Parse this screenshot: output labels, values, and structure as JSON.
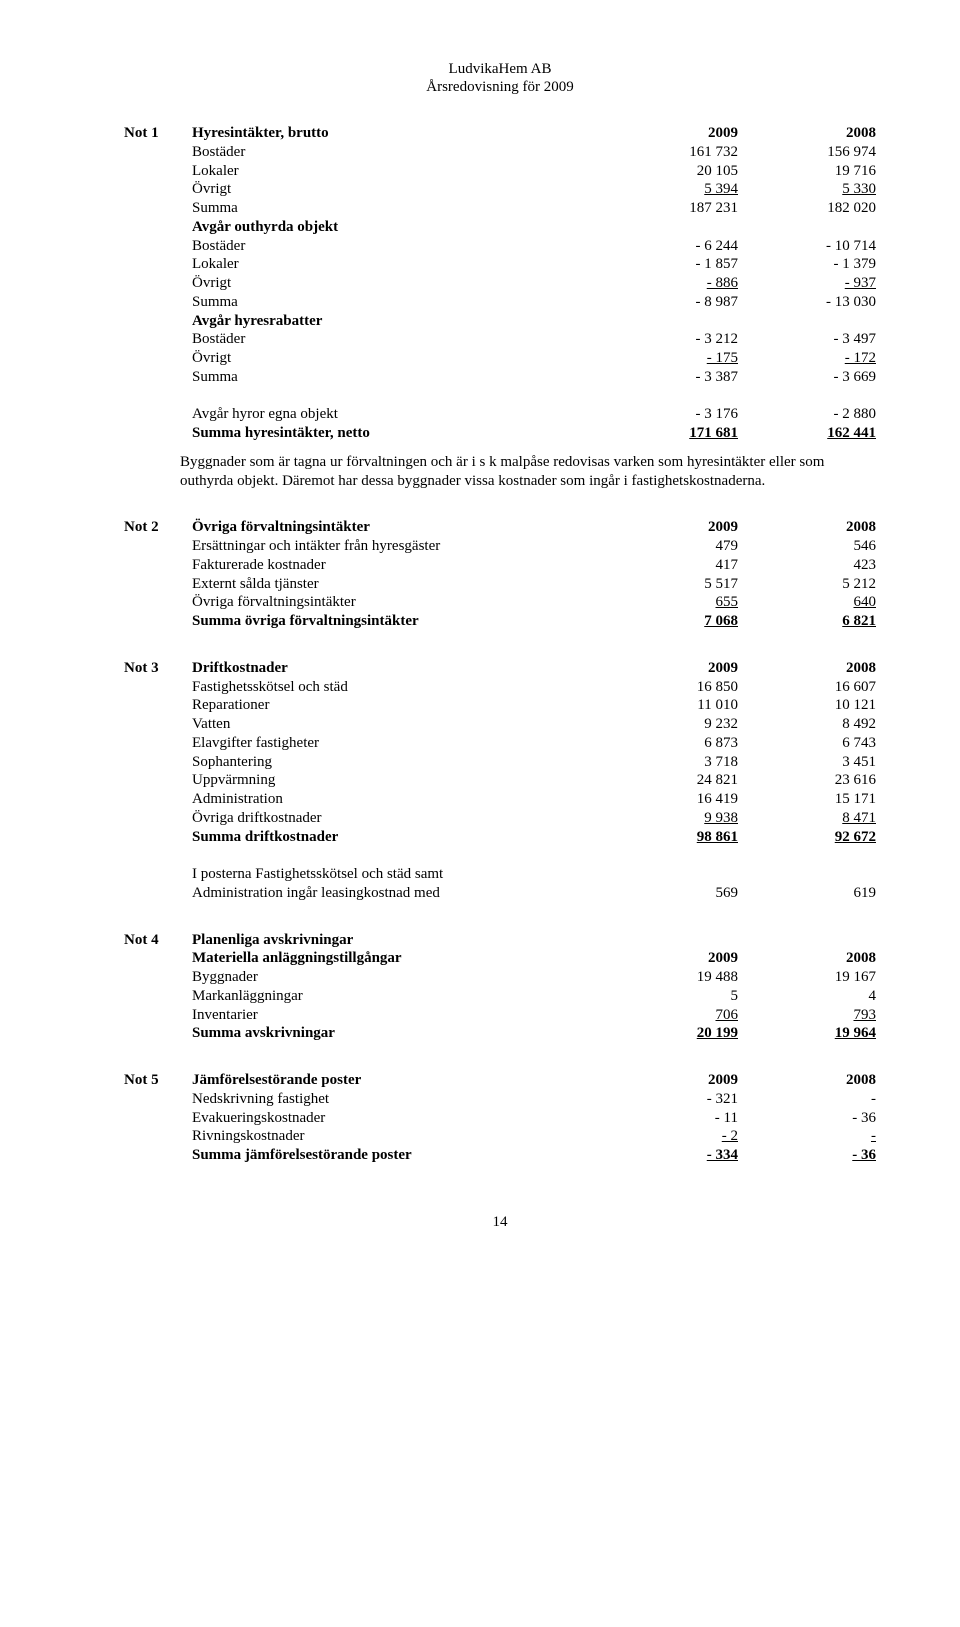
{
  "header": {
    "line1": "LudvikaHem AB",
    "line2": "Årsredovisning för 2009"
  },
  "notes": [
    {
      "id": "Not 1",
      "title": "Hyresintäkter, brutto",
      "col1": "2009",
      "col2": "2008",
      "rows": [
        {
          "label": "Bostäder",
          "c1": "161 732",
          "c2": "156 974"
        },
        {
          "label": "Lokaler",
          "c1": "20 105",
          "c2": "19 716"
        },
        {
          "label": "Övrigt",
          "c1": "5 394",
          "c2": "5 330",
          "u": true
        },
        {
          "label": "Summa",
          "c1": "187 231",
          "c2": "182 020"
        },
        {
          "label": "Avgår outhyrda objekt",
          "b": true
        },
        {
          "label": "Bostäder",
          "c1": "- 6 244",
          "c2": "- 10 714"
        },
        {
          "label": "Lokaler",
          "c1": "- 1 857",
          "c2": "- 1 379"
        },
        {
          "label": "Övrigt",
          "c1": "-    886",
          "c2": "-    937",
          "u": true
        },
        {
          "label": "Summa",
          "c1": "- 8 987",
          "c2": "- 13 030"
        },
        {
          "label": "Avgår hyresrabatter",
          "b": true
        },
        {
          "label": "Bostäder",
          "c1": "- 3 212",
          "c2": "- 3 497"
        },
        {
          "label": "Övrigt",
          "c1": "-    175",
          "c2": "-    172",
          "u": true
        },
        {
          "label": "Summa",
          "c1": "- 3 387",
          "c2": "- 3 669"
        },
        {
          "blank": true
        },
        {
          "label": "Avgår hyror egna objekt",
          "c1": "- 3 176",
          "c2": "- 2 880"
        },
        {
          "label": "Summa hyresintäkter, netto",
          "c1": "171 681",
          "c2": "162 441",
          "b": true,
          "u": true
        }
      ],
      "para": "Byggnader som är tagna ur förvaltningen och är i s k malpåse redovisas varken som hyresintäkter eller som outhyrda objekt. Däremot har dessa byggnader vissa kostnader som ingår i fastighetskostnaderna."
    },
    {
      "id": "Not 2",
      "title": "Övriga förvaltningsintäkter",
      "col1": "2009",
      "col2": "2008",
      "rows": [
        {
          "label": "Ersättningar och intäkter från hyresgäster",
          "c1": "479",
          "c2": "546"
        },
        {
          "label": "Fakturerade kostnader",
          "c1": "417",
          "c2": "423"
        },
        {
          "label": "Externt sålda tjänster",
          "c1": "5 517",
          "c2": "5 212"
        },
        {
          "label": "Övriga förvaltningsintäkter",
          "c1": "655",
          "c2": "640",
          "u": true
        },
        {
          "label": "Summa övriga förvaltningsintäkter",
          "c1": "7 068",
          "c2": "6 821",
          "b": true,
          "u": true
        }
      ]
    },
    {
      "id": "Not 3",
      "title": "Driftkostnader",
      "col1": "2009",
      "col2": "2008",
      "rows": [
        {
          "label": "Fastighetsskötsel och städ",
          "c1": "16 850",
          "c2": "16 607"
        },
        {
          "label": "Reparationer",
          "c1": "11 010",
          "c2": "10 121"
        },
        {
          "label": "Vatten",
          "c1": "9 232",
          "c2": "8 492"
        },
        {
          "label": "Elavgifter fastigheter",
          "c1": "6 873",
          "c2": "6 743"
        },
        {
          "label": "Sophantering",
          "c1": "3 718",
          "c2": "3 451"
        },
        {
          "label": "Uppvärmning",
          "c1": "24 821",
          "c2": "23 616"
        },
        {
          "label": "Administration",
          "c1": "16 419",
          "c2": "15 171"
        },
        {
          "label": "Övriga driftkostnader",
          "c1": "9 938",
          "c2": "8 471",
          "u": true
        },
        {
          "label": "Summa driftkostnader",
          "c1": "98 861",
          "c2": "92 672",
          "b": true,
          "u": true
        },
        {
          "blank": true
        },
        {
          "label": "I posterna Fastighetsskötsel och städ samt"
        },
        {
          "label": "Administration ingår leasingkostnad med",
          "c1": "569",
          "c2": "619"
        }
      ]
    },
    {
      "id": "Not 4",
      "title": "Planenliga avskrivningar",
      "sub": {
        "label": "Materiella anläggningstillgångar",
        "c1": "2009",
        "c2": "2008"
      },
      "rows": [
        {
          "label": "Byggnader",
          "c1": "19 488",
          "c2": "19 167"
        },
        {
          "label": "Markanläggningar",
          "c1": "5",
          "c2": "4"
        },
        {
          "label": "Inventarier",
          "c1": "706",
          "c2": "793",
          "u": true
        },
        {
          "label": "Summa avskrivningar",
          "c1": "20 199",
          "c2": "19 964",
          "b": true,
          "u": true
        }
      ]
    },
    {
      "id": "Not 5",
      "title": "Jämförelsestörande poster",
      "col1": "2009",
      "col2": "2008",
      "rows": [
        {
          "label": "Nedskrivning fastighet",
          "c1": "- 321",
          "c2": "-"
        },
        {
          "label": "Evakueringskostnader",
          "c1": "-  11",
          "c2": "- 36"
        },
        {
          "label": "Rivningskostnader",
          "c1": "-    2",
          "c2": "-",
          "u": true,
          "ux": true
        },
        {
          "label": "Summa jämförelsestörande poster",
          "c1": "- 334",
          "c2": "- 36",
          "b": true,
          "u": true
        }
      ]
    }
  ],
  "page": "14"
}
